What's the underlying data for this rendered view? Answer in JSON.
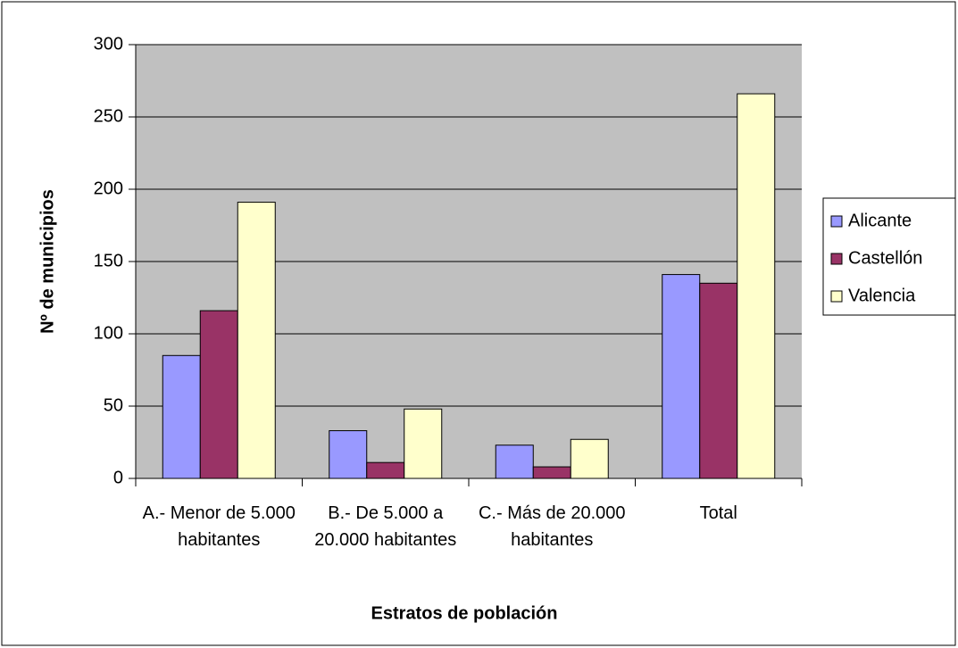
{
  "chart_data": {
    "type": "bar",
    "xlabel": "Estratos de población",
    "ylabel": "Nº de municipios",
    "categories": [
      "A.- Menor de 5.000 habitantes",
      "B.- De 5.000 a 20.000 habitantes",
      "C.- Más de 20.000 habitantes",
      "Total"
    ],
    "series": [
      {
        "name": "Alicante",
        "color": "#9999ff",
        "values": [
          85,
          33,
          23,
          141
        ]
      },
      {
        "name": "Castellón",
        "color": "#993366",
        "values": [
          116,
          11,
          8,
          135
        ]
      },
      {
        "name": "Valencia",
        "color": "#ffffcc",
        "values": [
          191,
          48,
          27,
          266
        ]
      }
    ],
    "ylim": [
      0,
      300
    ],
    "yticks": [
      0,
      50,
      100,
      150,
      200,
      250,
      300
    ],
    "grid": true,
    "plot_background": "#c0c0c0",
    "legend": "right"
  }
}
